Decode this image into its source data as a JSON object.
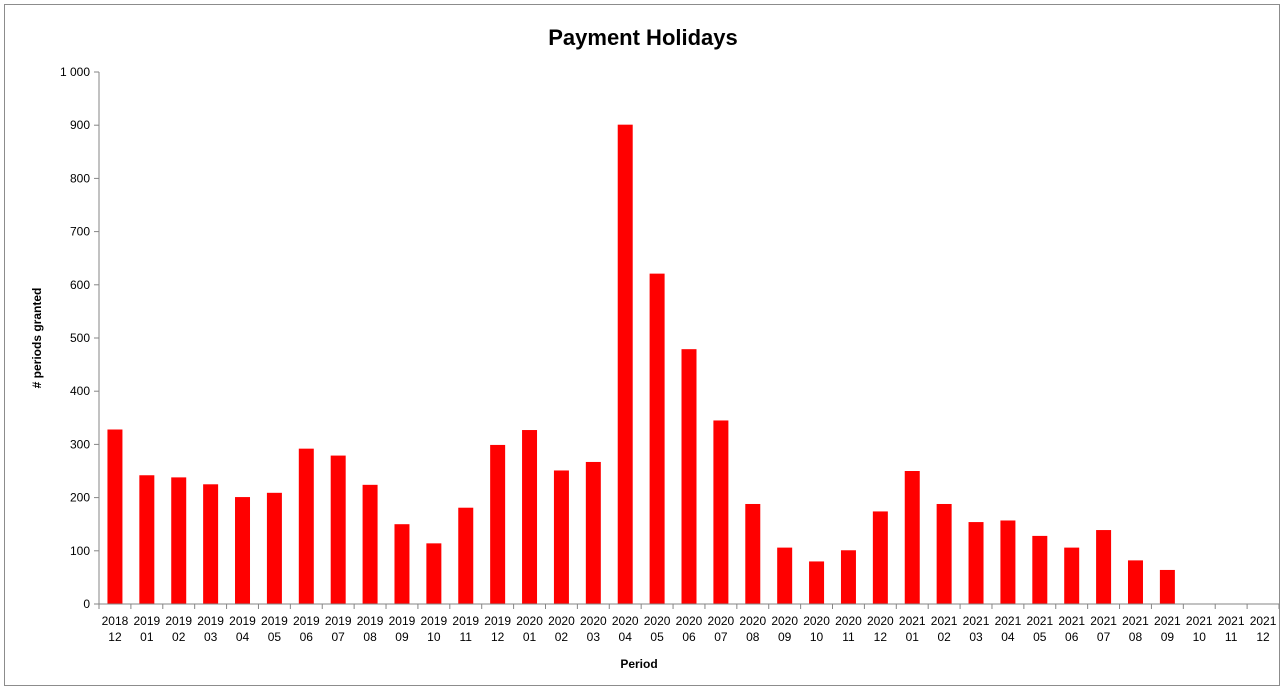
{
  "chart_data": {
    "type": "bar",
    "title": "Payment Holidays",
    "xlabel": "Period",
    "ylabel": "# periods granted",
    "ylim": [
      0,
      1000
    ],
    "yticks": [
      "0",
      "100",
      "200",
      "300",
      "400",
      "500",
      "600",
      "700",
      "800",
      "900",
      "1 000"
    ],
    "ytick_values": [
      0,
      100,
      200,
      300,
      400,
      500,
      600,
      700,
      800,
      900,
      1000
    ],
    "grid": false,
    "legend": "none",
    "bar_color": "#ff0000",
    "categories": [
      {
        "year": "2018",
        "month": "12"
      },
      {
        "year": "2019",
        "month": "01"
      },
      {
        "year": "2019",
        "month": "02"
      },
      {
        "year": "2019",
        "month": "03"
      },
      {
        "year": "2019",
        "month": "04"
      },
      {
        "year": "2019",
        "month": "05"
      },
      {
        "year": "2019",
        "month": "06"
      },
      {
        "year": "2019",
        "month": "07"
      },
      {
        "year": "2019",
        "month": "08"
      },
      {
        "year": "2019",
        "month": "09"
      },
      {
        "year": "2019",
        "month": "10"
      },
      {
        "year": "2019",
        "month": "11"
      },
      {
        "year": "2019",
        "month": "12"
      },
      {
        "year": "2020",
        "month": "01"
      },
      {
        "year": "2020",
        "month": "02"
      },
      {
        "year": "2020",
        "month": "03"
      },
      {
        "year": "2020",
        "month": "04"
      },
      {
        "year": "2020",
        "month": "05"
      },
      {
        "year": "2020",
        "month": "06"
      },
      {
        "year": "2020",
        "month": "07"
      },
      {
        "year": "2020",
        "month": "08"
      },
      {
        "year": "2020",
        "month": "09"
      },
      {
        "year": "2020",
        "month": "10"
      },
      {
        "year": "2020",
        "month": "11"
      },
      {
        "year": "2020",
        "month": "12"
      },
      {
        "year": "2021",
        "month": "01"
      },
      {
        "year": "2021",
        "month": "02"
      },
      {
        "year": "2021",
        "month": "03"
      },
      {
        "year": "2021",
        "month": "04"
      },
      {
        "year": "2021",
        "month": "05"
      },
      {
        "year": "2021",
        "month": "06"
      },
      {
        "year": "2021",
        "month": "07"
      },
      {
        "year": "2021",
        "month": "08"
      },
      {
        "year": "2021",
        "month": "09"
      },
      {
        "year": "2021",
        "month": "10"
      },
      {
        "year": "2021",
        "month": "11"
      },
      {
        "year": "2021",
        "month": "12"
      }
    ],
    "values": [
      328,
      242,
      238,
      225,
      201,
      209,
      292,
      279,
      224,
      150,
      114,
      181,
      299,
      327,
      251,
      267,
      901,
      621,
      479,
      345,
      188,
      106,
      80,
      101,
      174,
      250,
      188,
      154,
      157,
      128,
      106,
      139,
      82,
      64,
      0,
      0,
      0
    ]
  }
}
